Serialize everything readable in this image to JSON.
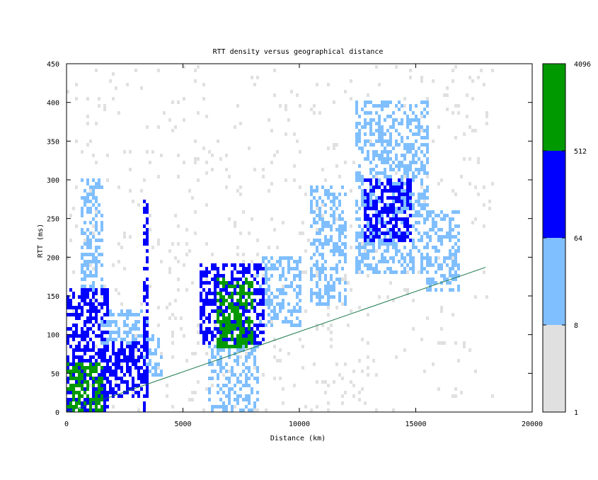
{
  "chart_data": {
    "type": "heatmap",
    "title": "RTT density versus geographical distance",
    "xlabel": "Distance (km)",
    "ylabel": "RTT (ms)",
    "xlim": [
      0,
      20000
    ],
    "ylim": [
      0,
      450
    ],
    "x_ticks": [
      "0",
      "5000",
      "10000",
      "15000",
      "20000"
    ],
    "y_ticks": [
      "0",
      "50",
      "100",
      "150",
      "200",
      "250",
      "300",
      "350",
      "400",
      "450"
    ],
    "colorbar": {
      "scale": "log",
      "tick_labels": [
        "1",
        "8",
        "64",
        "512",
        "4096"
      ],
      "bands": [
        {
          "range": [
            1,
            8
          ],
          "color": "#e0e0e0"
        },
        {
          "range": [
            8,
            64
          ],
          "color": "#80bfff"
        },
        {
          "range": [
            64,
            512
          ],
          "color": "#0000ff"
        },
        {
          "range": [
            512,
            4096
          ],
          "color": "#009900"
        }
      ]
    },
    "density_regions": [
      {
        "x": [
          0,
          1500
        ],
        "y": [
          0,
          60
        ],
        "level": 3
      },
      {
        "x": [
          0,
          1800
        ],
        "y": [
          0,
          160
        ],
        "level": 2
      },
      {
        "x": [
          700,
          1500
        ],
        "y": [
          160,
          300
        ],
        "level": 1
      },
      {
        "x": [
          1500,
          3500
        ],
        "y": [
          20,
          90
        ],
        "level": 2
      },
      {
        "x": [
          1500,
          3500
        ],
        "y": [
          90,
          130
        ],
        "level": 1
      },
      {
        "x": [
          3300,
          3500
        ],
        "y": [
          0,
          270
        ],
        "level": 2
      },
      {
        "x": [
          3400,
          4100
        ],
        "y": [
          50,
          100
        ],
        "level": 1
      },
      {
        "x": [
          6500,
          8000
        ],
        "y": [
          85,
          170
        ],
        "level": 3
      },
      {
        "x": [
          5800,
          8500
        ],
        "y": [
          90,
          190
        ],
        "level": 2
      },
      {
        "x": [
          6200,
          8200
        ],
        "y": [
          0,
          90
        ],
        "level": 1
      },
      {
        "x": [
          8200,
          10000
        ],
        "y": [
          110,
          200
        ],
        "level": 1
      },
      {
        "x": [
          10500,
          12000
        ],
        "y": [
          140,
          290
        ],
        "level": 1
      },
      {
        "x": [
          12800,
          14800
        ],
        "y": [
          220,
          300
        ],
        "level": 2
      },
      {
        "x": [
          12500,
          15500
        ],
        "y": [
          180,
          400
        ],
        "level": 1
      },
      {
        "x": [
          15500,
          16800
        ],
        "y": [
          160,
          260
        ],
        "level": 1
      }
    ],
    "reference_line": {
      "x": [
        0,
        18000
      ],
      "y": [
        0,
        187
      ],
      "color": "#1a7a4a"
    }
  }
}
